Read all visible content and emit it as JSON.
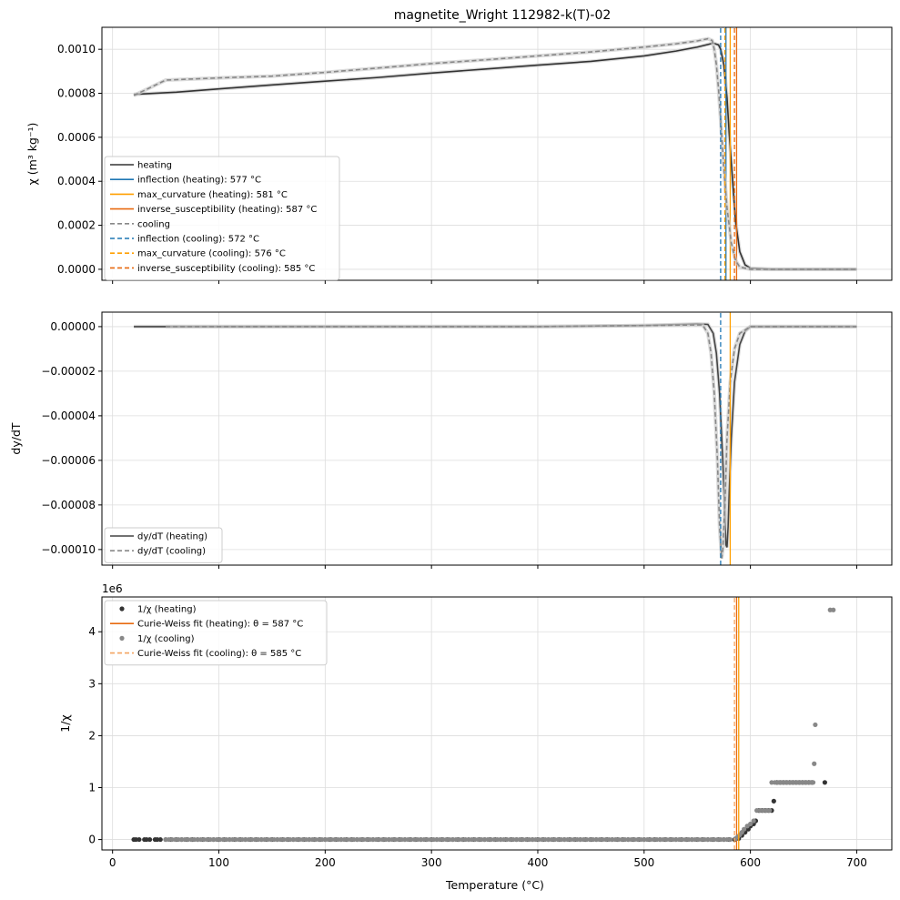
{
  "chart_data": [
    {
      "type": "line",
      "title": "magnetite_Wright 112982-k(T)-02",
      "xlabel": "",
      "ylabel": "χ (m³ kg⁻¹)",
      "xlim": [
        -10,
        733
      ],
      "ylim": [
        -5e-05,
        0.0011
      ],
      "grid": true,
      "legend_position": "lower-left",
      "xticks": [
        0,
        100,
        200,
        300,
        400,
        500,
        600,
        700
      ],
      "xtick_labels": [
        "",
        "",
        "",
        "",
        "",
        "",
        "",
        ""
      ],
      "yticks": [
        0,
        0.0002,
        0.0004,
        0.0006,
        0.0008,
        0.001
      ],
      "ytick_labels": [
        "0.0000",
        "0.0002",
        "0.0004",
        "0.0006",
        "0.0008",
        "0.0010"
      ],
      "series": [
        {
          "name": "heating",
          "color": "#333333",
          "dash": "solid",
          "x": [
            20,
            60,
            100,
            150,
            200,
            250,
            300,
            350,
            400,
            450,
            500,
            530,
            550,
            560,
            565,
            570,
            572,
            575,
            578,
            580,
            583,
            586,
            590,
            595,
            600,
            620,
            650,
            700
          ],
          "y": [
            0.000795,
            0.000805,
            0.00082,
            0.000838,
            0.000855,
            0.000872,
            0.000892,
            0.00091,
            0.000928,
            0.000945,
            0.00097,
            0.000992,
            0.00101,
            0.001022,
            0.001028,
            0.00102,
            0.001,
            0.00093,
            0.00078,
            0.00062,
            0.00042,
            0.00022,
            8e-05,
            2e-05,
            5e-06,
            0,
            0,
            0
          ]
        },
        {
          "name": "inflection (heating): 577 °C",
          "color": "#1f77b4",
          "dash": "solid",
          "x": [
            577,
            577
          ],
          "y": [
            -5e-05,
            0.0011
          ]
        },
        {
          "name": "max_curvature (heating): 581 °C",
          "color": "#ff9f00",
          "dash": "solid",
          "x": [
            581,
            581
          ],
          "y": [
            -5e-05,
            0.0011
          ]
        },
        {
          "name": "inverse_susceptibility (heating): 587 °C",
          "color": "#e86a10",
          "dash": "solid",
          "x": [
            587,
            587
          ],
          "y": [
            -5e-05,
            0.0011
          ]
        },
        {
          "name": "cooling",
          "color": "#888888",
          "dash": "dashed",
          "x": [
            20,
            50,
            100,
            150,
            200,
            250,
            300,
            350,
            400,
            450,
            500,
            530,
            550,
            560,
            564,
            566,
            568,
            570,
            572,
            575,
            578,
            582,
            586,
            590,
            600,
            650,
            700
          ],
          "y": [
            0.00079,
            0.00086,
            0.00087,
            0.000878,
            0.000895,
            0.000915,
            0.000935,
            0.000952,
            0.00097,
            0.000988,
            0.00101,
            0.001025,
            0.001038,
            0.001048,
            0.00104,
            0.001,
            0.00093,
            0.00082,
            0.00068,
            0.00046,
            0.00028,
            0.00012,
            4e-05,
            1e-05,
            0,
            0,
            0
          ]
        },
        {
          "name": "inflection (cooling): 572 °C",
          "color": "#1f77b4",
          "dash": "dashed",
          "x": [
            572,
            572
          ],
          "y": [
            -5e-05,
            0.0011
          ]
        },
        {
          "name": "max_curvature (cooling): 576 °C",
          "color": "#ff9f00",
          "dash": "dashed",
          "x": [
            576,
            576
          ],
          "y": [
            -5e-05,
            0.0011
          ]
        },
        {
          "name": "inverse_susceptibility (cooling): 585 °C",
          "color": "#e86a10",
          "dash": "dashed",
          "x": [
            585,
            585
          ],
          "y": [
            -5e-05,
            0.0011
          ]
        }
      ]
    },
    {
      "type": "line",
      "title": "",
      "xlabel": "",
      "ylabel": "dy/dT",
      "xlim": [
        -10,
        733
      ],
      "ylim": [
        -0.000107,
        6.5e-06
      ],
      "grid": true,
      "legend_position": "lower-left",
      "xticks": [
        0,
        100,
        200,
        300,
        400,
        500,
        600,
        700
      ],
      "xtick_labels": [
        "",
        "",
        "",
        "",
        "",
        "",
        "",
        ""
      ],
      "yticks": [
        0,
        -2e-05,
        -4e-05,
        -6e-05,
        -8e-05,
        -0.0001
      ],
      "ytick_labels": [
        "0.00000",
        "−0.00002",
        "−0.00004",
        "−0.00006",
        "−0.00008",
        "−0.00010"
      ],
      "series": [
        {
          "name": "dy/dT (heating)",
          "color": "#444444",
          "dash": "solid",
          "x": [
            20,
            100,
            200,
            300,
            400,
            500,
            550,
            560,
            565,
            568,
            571,
            574,
            576,
            577,
            578,
            579,
            580,
            582,
            585,
            590,
            595,
            600,
            700
          ],
          "y": [
            0,
            0,
            0,
            0,
            0,
            5e-07,
            1.2e-06,
            1e-06,
            -3e-06,
            -1.2e-05,
            -3e-05,
            -6e-05,
            -8.5e-05,
            -9.8e-05,
            -9.9e-05,
            -9e-05,
            -7.5e-05,
            -5e-05,
            -2.5e-05,
            -8e-06,
            -2e-06,
            0,
            0
          ]
        },
        {
          "name": "dy/dT (cooling)",
          "color": "#888888",
          "dash": "dashed",
          "x": [
            50,
            100,
            200,
            300,
            400,
            500,
            555,
            560,
            563,
            566,
            569,
            571,
            573,
            574,
            576,
            578,
            581,
            585,
            590,
            600,
            700
          ],
          "y": [
            0,
            0,
            0,
            0,
            0,
            5e-07,
            8e-07,
            -3e-06,
            -1.2e-05,
            -3e-05,
            -6e-05,
            -9e-05,
            -0.000104,
            -0.0001,
            -8e-05,
            -5e-05,
            -2.5e-05,
            -1e-05,
            -3e-06,
            0,
            0
          ]
        },
        {
          "name": "",
          "color": "#1f77b4",
          "dash": "dashed",
          "x": [
            572,
            572
          ],
          "y": [
            -0.000107,
            6.5e-06
          ]
        },
        {
          "name": "",
          "color": "#ff9f00",
          "dash": "solid",
          "x": [
            581,
            581
          ],
          "y": [
            -0.000107,
            6.5e-06
          ]
        }
      ]
    },
    {
      "type": "scatter",
      "title": "",
      "xlabel": "Temperature (°C)",
      "ylabel": "1/χ",
      "offset_text": "1e6",
      "xlim": [
        -10,
        733
      ],
      "ylim": [
        -0.2,
        4.67
      ],
      "grid": true,
      "legend_position": "upper-left",
      "xticks": [
        0,
        100,
        200,
        300,
        400,
        500,
        600,
        700
      ],
      "xtick_labels": [
        "0",
        "100",
        "200",
        "300",
        "400",
        "500",
        "600",
        "700"
      ],
      "yticks": [
        0,
        1,
        2,
        3,
        4
      ],
      "ytick_labels": [
        "0",
        "1",
        "2",
        "3",
        "4"
      ],
      "series": [
        {
          "name": "1/χ (heating)",
          "color": "#333333",
          "marker": "dot",
          "x_range": [
            20,
            586,
            5
          ],
          "x_range_value": 0,
          "x": [
            22,
            32,
            42,
            589,
            592,
            595,
            598,
            600,
            603,
            605,
            608,
            611,
            614,
            617,
            620,
            622,
            625,
            628,
            631,
            634,
            637,
            640,
            643,
            646,
            649,
            652,
            655,
            658,
            670
          ],
          "y": [
            0,
            0,
            0,
            0.02,
            0.08,
            0.14,
            0.2,
            0.26,
            0.3,
            0.36,
            0.56,
            0.56,
            0.56,
            0.56,
            0.56,
            0.74,
            1.1,
            1.1,
            1.1,
            1.1,
            1.1,
            1.1,
            1.1,
            1.1,
            1.1,
            1.1,
            1.1,
            1.1,
            1.1
          ]
        },
        {
          "name": "Curie-Weiss fit (heating): θ = 587 °C",
          "color": "#e86a10",
          "dash": "solid",
          "x": [
            587,
            587
          ],
          "y": [
            -0.2,
            4.67
          ]
        },
        {
          "name": "1/χ (cooling)",
          "color": "#888888",
          "marker": "dot",
          "x_range": [
            50,
            583,
            3
          ],
          "x_range_value": 0,
          "x": [
            586,
            588,
            590,
            592,
            594,
            597,
            600,
            603,
            606,
            609,
            612,
            615,
            618,
            620,
            623,
            626,
            629,
            632,
            635,
            638,
            641,
            644,
            647,
            650,
            653,
            656,
            659,
            660,
            661,
            675,
            678
          ],
          "y": [
            0.02,
            0.05,
            0.09,
            0.14,
            0.2,
            0.26,
            0.3,
            0.36,
            0.56,
            0.56,
            0.56,
            0.56,
            0.56,
            1.1,
            1.1,
            1.1,
            1.1,
            1.1,
            1.1,
            1.1,
            1.1,
            1.1,
            1.1,
            1.1,
            1.1,
            1.1,
            1.1,
            1.46,
            2.21,
            4.42,
            4.42
          ]
        },
        {
          "name": "Curie-Weiss fit (cooling): θ = 585 °C",
          "color": "#f4a460",
          "dash": "dashed",
          "x": [
            585,
            585
          ],
          "y": [
            -0.2,
            4.67
          ]
        },
        {
          "name": "",
          "color": "#ff9f00",
          "dash": "solid",
          "x": [
            589,
            589
          ],
          "y": [
            -0.2,
            4.67
          ]
        }
      ]
    }
  ]
}
